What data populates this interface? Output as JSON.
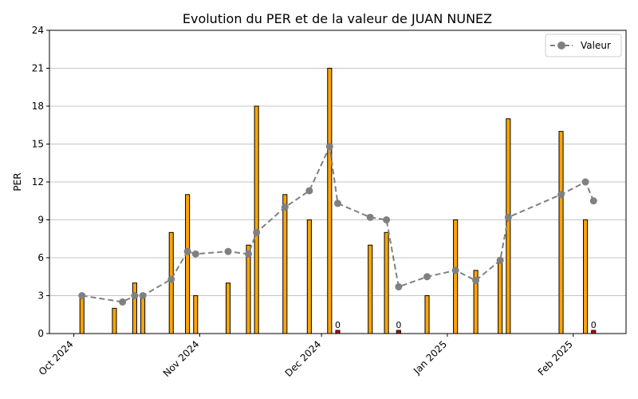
{
  "chart_data": {
    "type": "bar",
    "title": "Evolution du PER et de la valeur de JUAN NUNEZ",
    "xlabel": "",
    "ylabel": "PER",
    "ylim": [
      0,
      24
    ],
    "yticks": [
      0,
      3,
      6,
      9,
      12,
      15,
      18,
      21,
      24
    ],
    "xlim": [
      "2024-09-25",
      "2025-02-14"
    ],
    "xticks": [
      {
        "date": "2024-10-01",
        "label": "Oct 2024"
      },
      {
        "date": "2024-11-01",
        "label": "Nov 2024"
      },
      {
        "date": "2024-12-01",
        "label": "Dec 2024"
      },
      {
        "date": "2025-01-01",
        "label": "Jan 2025"
      },
      {
        "date": "2025-02-01",
        "label": "Feb 2025"
      }
    ],
    "grid": "horizontal",
    "legend": {
      "position": "top-right",
      "entries": [
        "Valeur"
      ]
    },
    "colors": {
      "bar": "#FFA500",
      "bar_zero": "#CC0000",
      "line": "#808080"
    },
    "bars": [
      {
        "date": "2024-10-03",
        "value": 3
      },
      {
        "date": "2024-10-11",
        "value": 2
      },
      {
        "date": "2024-10-16",
        "value": 4
      },
      {
        "date": "2024-10-18",
        "value": 3
      },
      {
        "date": "2024-10-25",
        "value": 8
      },
      {
        "date": "2024-10-29",
        "value": 11
      },
      {
        "date": "2024-10-31",
        "value": 3
      },
      {
        "date": "2024-11-08",
        "value": 4
      },
      {
        "date": "2024-11-13",
        "value": 7
      },
      {
        "date": "2024-11-15",
        "value": 18
      },
      {
        "date": "2024-11-22",
        "value": 11
      },
      {
        "date": "2024-11-28",
        "value": 9
      },
      {
        "date": "2024-12-03",
        "value": 21
      },
      {
        "date": "2024-12-05",
        "value": 0.25,
        "label": "0"
      },
      {
        "date": "2024-12-13",
        "value": 7
      },
      {
        "date": "2024-12-17",
        "value": 8
      },
      {
        "date": "2024-12-20",
        "value": 0.25,
        "label": "0"
      },
      {
        "date": "2024-12-27",
        "value": 3
      },
      {
        "date": "2025-01-03",
        "value": 9
      },
      {
        "date": "2025-01-08",
        "value": 5
      },
      {
        "date": "2025-01-14",
        "value": 6
      },
      {
        "date": "2025-01-16",
        "value": 17
      },
      {
        "date": "2025-01-29",
        "value": 16
      },
      {
        "date": "2025-02-04",
        "value": 9
      },
      {
        "date": "2025-02-06",
        "value": 0.25,
        "label": "0"
      }
    ],
    "series": [
      {
        "name": "Valeur",
        "type": "line",
        "points": [
          {
            "date": "2024-10-03",
            "value": 3.0
          },
          {
            "date": "2024-10-13",
            "value": 2.5
          },
          {
            "date": "2024-10-16",
            "value": 3.0
          },
          {
            "date": "2024-10-18",
            "value": 3.0
          },
          {
            "date": "2024-10-25",
            "value": 4.3
          },
          {
            "date": "2024-10-29",
            "value": 6.5
          },
          {
            "date": "2024-10-31",
            "value": 6.3
          },
          {
            "date": "2024-11-08",
            "value": 6.5
          },
          {
            "date": "2024-11-13",
            "value": 6.3
          },
          {
            "date": "2024-11-15",
            "value": 8.0
          },
          {
            "date": "2024-11-22",
            "value": 10.0
          },
          {
            "date": "2024-11-28",
            "value": 11.3
          },
          {
            "date": "2024-12-03",
            "value": 14.8
          },
          {
            "date": "2024-12-05",
            "value": 10.3
          },
          {
            "date": "2024-12-13",
            "value": 9.2
          },
          {
            "date": "2024-12-17",
            "value": 9.0
          },
          {
            "date": "2024-12-20",
            "value": 3.7
          },
          {
            "date": "2024-12-27",
            "value": 4.5
          },
          {
            "date": "2025-01-03",
            "value": 5.0
          },
          {
            "date": "2025-01-08",
            "value": 4.2
          },
          {
            "date": "2025-01-14",
            "value": 5.8
          },
          {
            "date": "2025-01-16",
            "value": 9.2
          },
          {
            "date": "2025-01-29",
            "value": 11.0
          },
          {
            "date": "2025-02-04",
            "value": 12.0
          },
          {
            "date": "2025-02-06",
            "value": 10.5
          }
        ]
      }
    ]
  }
}
